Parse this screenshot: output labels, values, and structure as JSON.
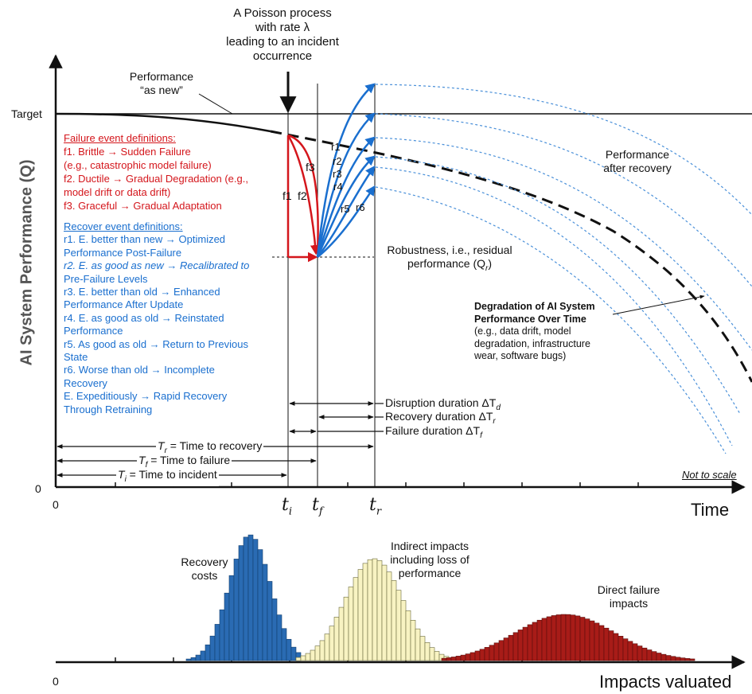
{
  "top_note": [
    "A Poisson process",
    "with rate λ",
    "leading to an incident",
    "occurrence"
  ],
  "as_new": [
    "Performance",
    "“as new”"
  ],
  "target_label": "Target",
  "y_axis_label": "AI System Performance (Q)",
  "zero_top": "0",
  "zero_x": "0",
  "zero_bottom": "0",
  "time_label": "Time",
  "not_to_scale": "Not to scale",
  "impacts_label": "Impacts valuated",
  "failure_defs": {
    "heading": "Failure event definitions:",
    "lines": [
      "f1. Brittle → Sudden Failure",
      "(e.g., catastrophic model failure)",
      "f2.  Ductile → Gradual Degradation (e.g.,",
      "model drift or data drift)",
      "f3. Graceful → Gradual Adaptation"
    ]
  },
  "recover_defs": {
    "heading": "Recover event definitions:",
    "lines": [
      "r1. E. better than new → Optimized",
      "Performance Post-Failure",
      "r2. E. as good as new → Recalibrated to",
      "Pre-Failure Levels",
      "r3. E. better than old → Enhanced",
      "Performance After Update",
      "r4. E. as good as old → Reinstated",
      "Performance",
      "r5. As good as old → Return to Previous",
      "State",
      "r6. Worse than old → Incomplete",
      "Recovery",
      "E. Expeditiously → Rapid Recovery",
      "Through Retraining"
    ]
  },
  "curve_labels": {
    "f1": "f1",
    "f2": "f2",
    "f3": "f3",
    "r1": "r1",
    "r2": "r2",
    "r3": "r3",
    "r4": "r4",
    "r5": "r5",
    "r6": "r6"
  },
  "perf_after_recovery": [
    "Performance",
    "after recovery"
  ],
  "robustness": [
    "Robustness, i.e., residual",
    "performance (Q"
  ],
  "robustness_sub": "r",
  "robustness_end": ")",
  "degradation": {
    "title": [
      "Degradation of AI System",
      "Performance Over Time"
    ],
    "body": [
      "(e.g., data drift, model",
      "degradation, infrastructure",
      "wear, software bugs)"
    ]
  },
  "durations": {
    "disruption": "Disruption duration ΔT",
    "disruption_sub": "d",
    "recovery": "Recovery duration ΔT",
    "recovery_sub": "r",
    "failure": "Failure duration ΔT",
    "failure_sub": "f"
  },
  "times": {
    "tr": {
      "sym": "T",
      "sub": "r",
      "text": " = Time to recovery"
    },
    "tf": {
      "sym": "T",
      "sub": "f",
      "text": " = Time to failure"
    },
    "ti": {
      "sym": "T",
      "sub": "i",
      "text": " = Time to incident"
    }
  },
  "ticks": {
    "ti": "t",
    "ti_sub": "i",
    "tf": "t",
    "tf_sub": "f",
    "tr": "t",
    "tr_sub": "r"
  },
  "distributions": {
    "recovery_costs": [
      "Recovery",
      "costs"
    ],
    "indirect": [
      "Indirect impacts",
      "including loss of",
      "performance"
    ],
    "direct": [
      "Direct failure",
      "impacts"
    ]
  },
  "colors": {
    "red": "#d4161c",
    "blue": "#1a6fcf",
    "blue_bar": "#2a6bb3",
    "yellow_bar": "#f8f3c2",
    "red_bar": "#a81c18",
    "dotted": "#4a90d9"
  }
}
